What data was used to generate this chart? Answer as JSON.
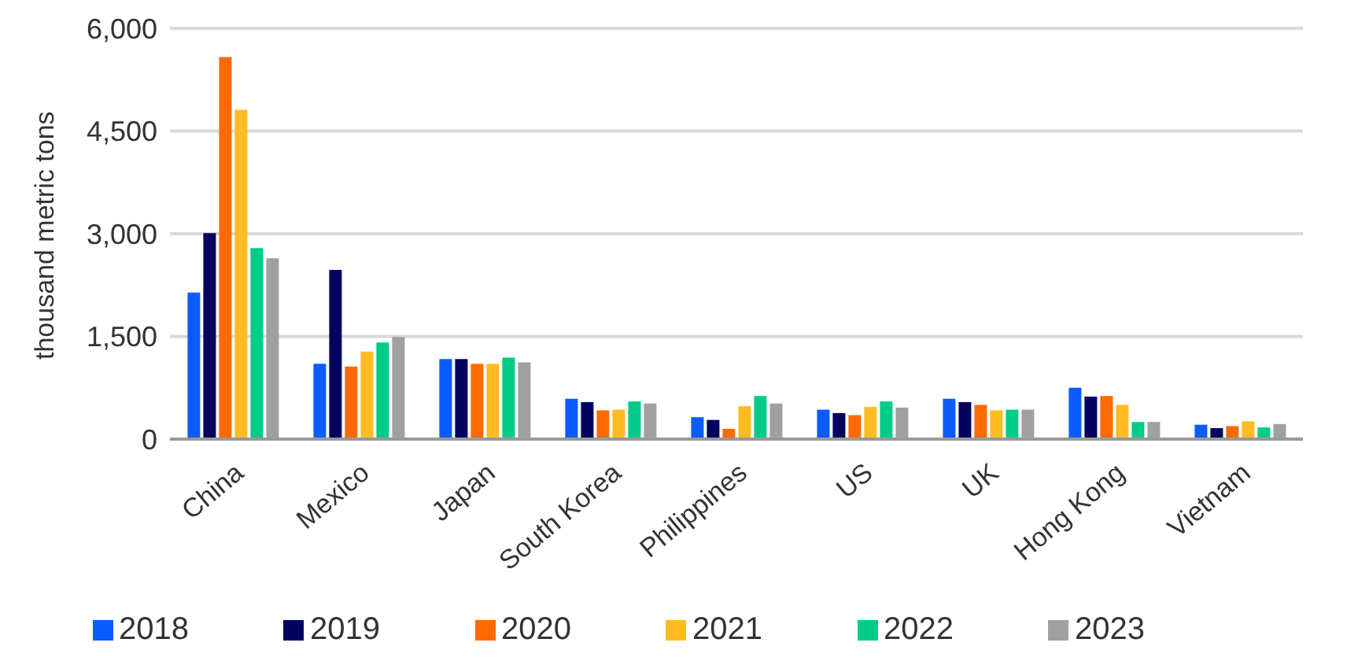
{
  "chart_data": {
    "type": "bar",
    "ylabel": "thousand metric tons",
    "categories": [
      "China",
      "Mexico",
      "Japan",
      "South Korea",
      "Philippines",
      "US",
      "UK",
      "Hong Kong",
      "Vietnam"
    ],
    "series": [
      {
        "name": "2018",
        "color": "#0a5cff",
        "values": [
          2140,
          1100,
          1170,
          590,
          320,
          430,
          590,
          750,
          210
        ]
      },
      {
        "name": "2019",
        "color": "#03035e",
        "values": [
          3010,
          2470,
          1170,
          540,
          280,
          380,
          540,
          620,
          160
        ]
      },
      {
        "name": "2020",
        "color": "#ff6a00",
        "values": [
          5580,
          1060,
          1100,
          420,
          150,
          350,
          500,
          630,
          190
        ]
      },
      {
        "name": "2021",
        "color": "#ffbb22",
        "values": [
          4810,
          1280,
          1100,
          430,
          480,
          470,
          420,
          500,
          260
        ]
      },
      {
        "name": "2022",
        "color": "#00cc88",
        "values": [
          2790,
          1410,
          1190,
          550,
          630,
          550,
          430,
          250,
          170
        ]
      },
      {
        "name": "2023",
        "color": "#a0a0a0",
        "values": [
          2640,
          1490,
          1120,
          520,
          520,
          460,
          430,
          250,
          220
        ]
      }
    ],
    "ylim": [
      0,
      6000
    ],
    "yticks": [
      0,
      {
        "value": 1500,
        "label": "1,500"
      },
      {
        "value": 3000,
        "label": "3,000"
      },
      {
        "value": 4500,
        "label": "4,500"
      },
      {
        "value": 6000,
        "label": "6,000"
      }
    ],
    "grid": "y",
    "legend": "bottom"
  }
}
